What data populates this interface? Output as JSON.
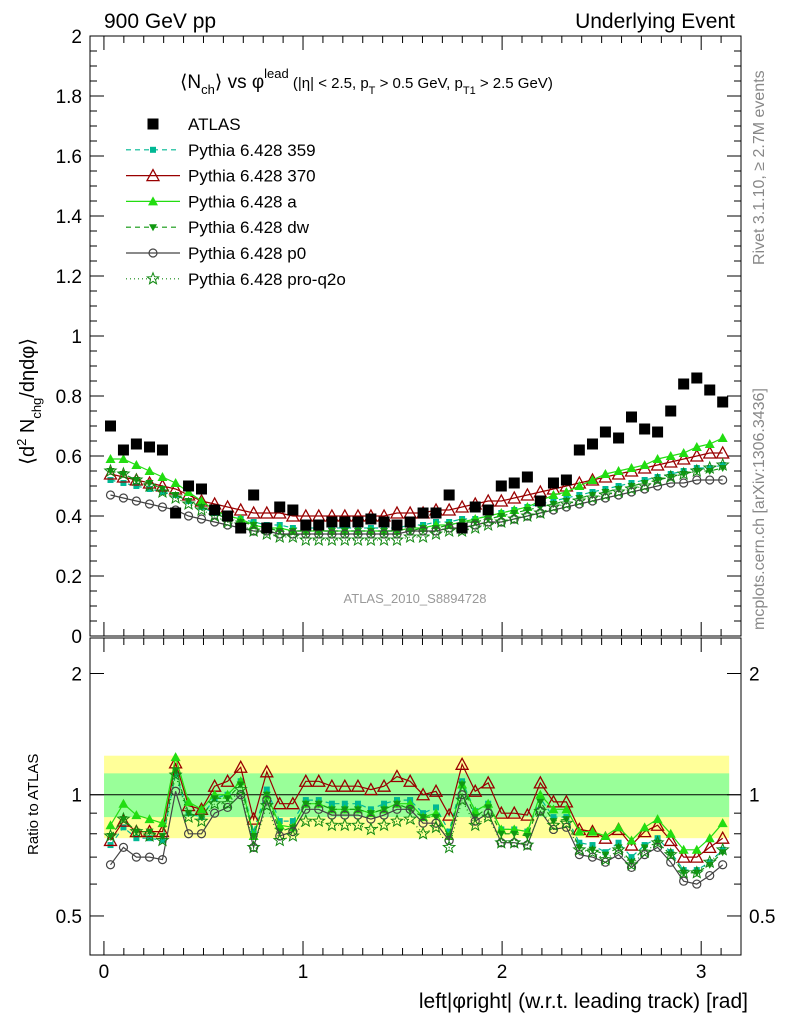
{
  "header": {
    "left": "900 GeV pp",
    "right": "Underlying Event"
  },
  "side_text": {
    "rivet": "Rivet 3.1.10, ≥ 2.7M events",
    "mcplots": "mcplots.cern.ch [arXiv:1306.3436]"
  },
  "watermark": "ATLAS_2010_S8894728",
  "colors": {
    "atlas": "#000000",
    "p359": "#00b894",
    "p370": "#990000",
    "pa": "#22dd11",
    "pdw": "#119911",
    "pp0": "#444444",
    "pq2o": "#118811",
    "band_outer": "#ffff99",
    "band_inner": "#99ff99"
  },
  "chart_data": [
    {
      "type": "scatter",
      "panel": "main",
      "title": "<N_ch> vs φ^lead (|η| < 2.5, p_T > 0.5 GeV, p_T1 > 2.5 GeV)",
      "ylabel": "⟨d² N_chg/dηdφ⟩",
      "ylim": [
        0,
        2
      ],
      "xlim": [
        -0.07,
        3.2
      ],
      "yticks": [
        "0",
        "0.2",
        "0.4",
        "0.6",
        "0.8",
        "1",
        "1.2",
        "1.4",
        "1.6",
        "1.8",
        "2"
      ],
      "xticks": [
        "0",
        "1",
        "2",
        "3"
      ],
      "legend_position": "top-left",
      "x": [
        0.033,
        0.098,
        0.163,
        0.229,
        0.294,
        0.36,
        0.425,
        0.49,
        0.556,
        0.621,
        0.687,
        0.752,
        0.818,
        0.883,
        0.949,
        1.014,
        1.079,
        1.145,
        1.21,
        1.276,
        1.341,
        1.407,
        1.472,
        1.538,
        1.603,
        1.668,
        1.734,
        1.799,
        1.865,
        1.93,
        1.996,
        2.061,
        2.127,
        2.192,
        2.258,
        2.323,
        2.388,
        2.454,
        2.519,
        2.585,
        2.65,
        2.716,
        2.781,
        2.847,
        2.912,
        2.978,
        3.043,
        3.108
      ],
      "series": [
        {
          "name": "ATLAS",
          "key": "atlas",
          "values": [
            0.7,
            0.62,
            0.64,
            0.63,
            0.62,
            0.41,
            0.5,
            0.49,
            0.42,
            0.4,
            0.36,
            0.47,
            0.36,
            0.43,
            0.42,
            0.37,
            0.37,
            0.38,
            0.38,
            0.38,
            0.39,
            0.38,
            0.37,
            0.38,
            0.41,
            0.41,
            0.47,
            0.36,
            0.43,
            0.42,
            0.5,
            0.51,
            0.53,
            0.45,
            0.51,
            0.52,
            0.62,
            0.64,
            0.68,
            0.66,
            0.73,
            0.69,
            0.68,
            0.75,
            0.84,
            0.86,
            0.82,
            0.78
          ]
        },
        {
          "name": "Pythia 6.428 359",
          "key": "p359",
          "values": [
            0.52,
            0.51,
            0.5,
            0.49,
            0.48,
            0.47,
            0.45,
            0.43,
            0.41,
            0.4,
            0.39,
            0.38,
            0.37,
            0.37,
            0.36,
            0.36,
            0.36,
            0.36,
            0.36,
            0.36,
            0.36,
            0.36,
            0.36,
            0.37,
            0.37,
            0.38,
            0.38,
            0.39,
            0.39,
            0.4,
            0.41,
            0.42,
            0.43,
            0.44,
            0.45,
            0.46,
            0.47,
            0.48,
            0.49,
            0.5,
            0.51,
            0.52,
            0.53,
            0.54,
            0.55,
            0.56,
            0.56,
            0.57
          ]
        },
        {
          "name": "Pythia 6.428 370",
          "key": "p370",
          "values": [
            0.54,
            0.53,
            0.52,
            0.51,
            0.5,
            0.49,
            0.47,
            0.45,
            0.44,
            0.43,
            0.42,
            0.41,
            0.41,
            0.41,
            0.4,
            0.4,
            0.4,
            0.4,
            0.4,
            0.4,
            0.4,
            0.4,
            0.41,
            0.41,
            0.41,
            0.42,
            0.42,
            0.43,
            0.44,
            0.45,
            0.45,
            0.46,
            0.47,
            0.48,
            0.49,
            0.5,
            0.51,
            0.52,
            0.53,
            0.54,
            0.55,
            0.56,
            0.57,
            0.58,
            0.59,
            0.6,
            0.61,
            0.61
          ]
        },
        {
          "name": "Pythia 6.428 a",
          "key": "pa",
          "values": [
            0.59,
            0.59,
            0.57,
            0.55,
            0.53,
            0.51,
            0.48,
            0.45,
            0.42,
            0.4,
            0.39,
            0.37,
            0.36,
            0.36,
            0.35,
            0.35,
            0.35,
            0.35,
            0.35,
            0.35,
            0.35,
            0.35,
            0.35,
            0.36,
            0.36,
            0.37,
            0.37,
            0.38,
            0.39,
            0.4,
            0.41,
            0.42,
            0.43,
            0.45,
            0.47,
            0.48,
            0.5,
            0.52,
            0.54,
            0.55,
            0.56,
            0.57,
            0.59,
            0.6,
            0.61,
            0.63,
            0.64,
            0.66
          ]
        },
        {
          "name": "Pythia 6.428 dw",
          "key": "pdw",
          "values": [
            0.55,
            0.54,
            0.52,
            0.51,
            0.49,
            0.47,
            0.45,
            0.43,
            0.41,
            0.39,
            0.38,
            0.37,
            0.36,
            0.35,
            0.35,
            0.35,
            0.35,
            0.35,
            0.35,
            0.35,
            0.35,
            0.35,
            0.35,
            0.35,
            0.36,
            0.36,
            0.37,
            0.38,
            0.38,
            0.39,
            0.4,
            0.41,
            0.42,
            0.43,
            0.44,
            0.45,
            0.46,
            0.47,
            0.48,
            0.49,
            0.5,
            0.51,
            0.52,
            0.53,
            0.54,
            0.55,
            0.55,
            0.56
          ]
        },
        {
          "name": "Pythia 6.428 p0",
          "key": "pp0",
          "values": [
            0.47,
            0.46,
            0.45,
            0.44,
            0.43,
            0.42,
            0.4,
            0.39,
            0.38,
            0.37,
            0.36,
            0.35,
            0.35,
            0.34,
            0.34,
            0.34,
            0.34,
            0.34,
            0.34,
            0.34,
            0.34,
            0.34,
            0.34,
            0.35,
            0.35,
            0.35,
            0.36,
            0.36,
            0.37,
            0.38,
            0.38,
            0.39,
            0.4,
            0.41,
            0.42,
            0.43,
            0.44,
            0.45,
            0.46,
            0.47,
            0.48,
            0.49,
            0.5,
            0.51,
            0.51,
            0.52,
            0.52,
            0.52
          ]
        },
        {
          "name": "Pythia 6.428 pro-q2o",
          "key": "pq2o",
          "values": [
            0.55,
            0.54,
            0.52,
            0.5,
            0.48,
            0.46,
            0.44,
            0.42,
            0.4,
            0.38,
            0.37,
            0.35,
            0.34,
            0.33,
            0.33,
            0.32,
            0.32,
            0.32,
            0.32,
            0.32,
            0.32,
            0.32,
            0.32,
            0.33,
            0.33,
            0.34,
            0.35,
            0.35,
            0.36,
            0.37,
            0.38,
            0.39,
            0.4,
            0.41,
            0.43,
            0.44,
            0.45,
            0.46,
            0.47,
            0.48,
            0.49,
            0.5,
            0.52,
            0.53,
            0.54,
            0.55,
            0.56,
            0.57
          ]
        }
      ]
    },
    {
      "type": "line",
      "panel": "ratio",
      "ylabel": "Ratio to ATLAS",
      "xlabel": "left|φright| (w.r.t. leading track) [rad]",
      "ylim": [
        0.4,
        2.45
      ],
      "log_y": true,
      "yticks": [
        "0.5",
        "1",
        "2"
      ],
      "reference": 1,
      "band_outer": [
        0.78,
        1.25
      ],
      "band_inner": [
        0.88,
        1.13
      ],
      "series": [
        {
          "name": "Pythia 6.428 359",
          "key": "p359",
          "values": [
            0.75,
            0.83,
            0.78,
            0.78,
            0.77,
            1.13,
            0.9,
            0.88,
            0.98,
            1.0,
            1.08,
            0.81,
            1.03,
            0.86,
            0.86,
            0.97,
            0.97,
            0.95,
            0.95,
            0.95,
            0.92,
            0.95,
            0.97,
            0.97,
            0.9,
            0.93,
            0.81,
            1.08,
            0.91,
            0.95,
            0.82,
            0.82,
            0.81,
            0.98,
            0.88,
            0.88,
            0.76,
            0.75,
            0.72,
            0.76,
            0.7,
            0.75,
            0.78,
            0.72,
            0.65,
            0.65,
            0.68,
            0.73
          ]
        },
        {
          "name": "Pythia 6.428 370",
          "key": "p370",
          "values": [
            0.77,
            0.86,
            0.81,
            0.81,
            0.81,
            1.2,
            0.94,
            0.92,
            1.05,
            1.08,
            1.17,
            0.87,
            1.14,
            0.95,
            0.95,
            1.08,
            1.08,
            1.05,
            1.05,
            1.05,
            1.03,
            1.05,
            1.11,
            1.08,
            1.0,
            1.02,
            0.89,
            1.19,
            1.02,
            1.07,
            0.9,
            0.9,
            0.89,
            1.07,
            0.96,
            0.96,
            0.82,
            0.81,
            0.78,
            0.82,
            0.75,
            0.81,
            0.84,
            0.77,
            0.7,
            0.7,
            0.74,
            0.78
          ]
        },
        {
          "name": "Pythia 6.428 a",
          "key": "pa",
          "values": [
            0.84,
            0.95,
            0.89,
            0.87,
            0.85,
            1.24,
            0.96,
            0.92,
            1.0,
            1.0,
            1.08,
            0.79,
            1.0,
            0.84,
            0.83,
            0.95,
            0.95,
            0.92,
            0.92,
            0.92,
            0.9,
            0.92,
            0.95,
            0.95,
            0.88,
            0.9,
            0.79,
            1.06,
            0.91,
            0.95,
            0.82,
            0.82,
            0.81,
            1.0,
            0.92,
            0.92,
            0.81,
            0.81,
            0.79,
            0.83,
            0.77,
            0.83,
            0.87,
            0.8,
            0.73,
            0.73,
            0.78,
            0.85
          ]
        },
        {
          "name": "Pythia 6.428 dw",
          "key": "pdw",
          "values": [
            0.79,
            0.87,
            0.81,
            0.81,
            0.79,
            1.15,
            0.9,
            0.88,
            0.98,
            0.98,
            1.06,
            0.79,
            1.0,
            0.81,
            0.83,
            0.95,
            0.95,
            0.92,
            0.92,
            0.92,
            0.9,
            0.92,
            0.95,
            0.92,
            0.88,
            0.88,
            0.79,
            1.06,
            0.88,
            0.93,
            0.8,
            0.8,
            0.79,
            0.96,
            0.86,
            0.87,
            0.74,
            0.73,
            0.71,
            0.74,
            0.68,
            0.74,
            0.76,
            0.71,
            0.64,
            0.64,
            0.67,
            0.72
          ]
        },
        {
          "name": "Pythia 6.428 p0",
          "key": "pp0",
          "values": [
            0.67,
            0.74,
            0.7,
            0.7,
            0.69,
            1.02,
            0.8,
            0.8,
            0.9,
            0.93,
            1.0,
            0.74,
            0.97,
            0.79,
            0.81,
            0.92,
            0.92,
            0.89,
            0.89,
            0.89,
            0.87,
            0.89,
            0.92,
            0.92,
            0.85,
            0.85,
            0.77,
            1.0,
            0.86,
            0.9,
            0.76,
            0.76,
            0.75,
            0.91,
            0.82,
            0.83,
            0.71,
            0.7,
            0.68,
            0.71,
            0.66,
            0.71,
            0.74,
            0.68,
            0.61,
            0.6,
            0.63,
            0.67
          ]
        },
        {
          "name": "Pythia 6.428 pro-q2o",
          "key": "pq2o",
          "values": [
            0.79,
            0.87,
            0.81,
            0.79,
            0.77,
            1.12,
            0.88,
            0.86,
            0.95,
            0.95,
            1.03,
            0.74,
            0.94,
            0.77,
            0.79,
            0.86,
            0.86,
            0.84,
            0.84,
            0.84,
            0.82,
            0.84,
            0.86,
            0.87,
            0.8,
            0.83,
            0.74,
            0.97,
            0.84,
            0.88,
            0.76,
            0.76,
            0.75,
            0.91,
            0.84,
            0.85,
            0.73,
            0.72,
            0.69,
            0.73,
            0.67,
            0.72,
            0.76,
            0.71,
            0.64,
            0.64,
            0.68,
            0.73
          ]
        }
      ]
    }
  ]
}
